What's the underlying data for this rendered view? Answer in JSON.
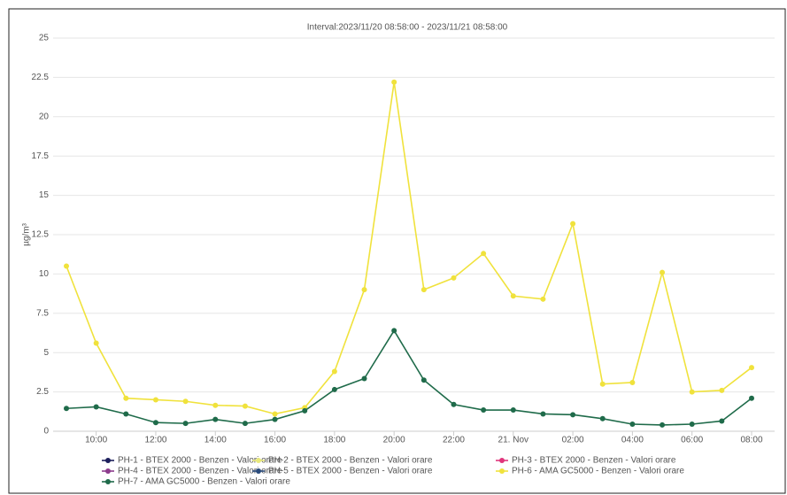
{
  "chart_data": {
    "type": "line",
    "title": "Interval:2023/11/20 08:58:00 - 2023/11/21 08:58:00",
    "y_label": "µg/m³",
    "categories": [
      null,
      "10:00",
      null,
      "12:00",
      null,
      "14:00",
      null,
      "16:00",
      null,
      "18:00",
      null,
      "20:00",
      null,
      "22:00",
      null,
      "21. Nov",
      null,
      "02:00",
      null,
      "04:00",
      null,
      "06:00",
      null,
      "08:00"
    ],
    "ylim": [
      0,
      25
    ],
    "yticks": [
      0,
      2.5,
      5,
      7.5,
      10,
      12.5,
      15,
      17.5,
      20,
      22.5,
      25
    ],
    "grid": true,
    "series": [
      {
        "name": "PH-1 - BTEX 2000 - Benzen - Valori orare",
        "color": "#1c1f5c",
        "values": [
          null,
          null,
          null,
          null,
          null,
          null,
          null,
          null,
          null,
          null,
          null,
          null,
          null,
          null,
          null,
          null,
          null,
          null,
          null,
          null,
          null,
          null,
          null,
          null
        ]
      },
      {
        "name": "PH-2 - BTEX 2000 - Benzen - Valori orare",
        "color": "#e8e87c",
        "values": [
          null,
          null,
          null,
          null,
          null,
          null,
          null,
          null,
          null,
          null,
          null,
          null,
          null,
          null,
          null,
          null,
          null,
          null,
          null,
          null,
          null,
          null,
          null,
          null
        ]
      },
      {
        "name": "PH-3 - BTEX 2000 - Benzen - Valori orare",
        "color": "#e0357c",
        "values": [
          null,
          null,
          null,
          null,
          null,
          null,
          null,
          null,
          null,
          null,
          null,
          null,
          null,
          null,
          null,
          null,
          null,
          null,
          null,
          null,
          null,
          null,
          null,
          null
        ]
      },
      {
        "name": "PH-4 - BTEX 2000 - Benzen - Valori orare",
        "color": "#8c3b8c",
        "values": [
          null,
          null,
          null,
          null,
          null,
          null,
          null,
          null,
          null,
          null,
          null,
          null,
          null,
          null,
          null,
          null,
          null,
          null,
          null,
          null,
          null,
          null,
          null,
          null
        ]
      },
      {
        "name": "PH-5 - BTEX 2000 - Benzen - Valori orare",
        "color": "#2b4c7c",
        "values": [
          null,
          null,
          null,
          null,
          null,
          null,
          null,
          null,
          null,
          null,
          null,
          null,
          null,
          null,
          null,
          null,
          null,
          null,
          null,
          null,
          null,
          null,
          null,
          null
        ]
      },
      {
        "name": "PH-6 - AMA GC5000 - Benzen - Valori orare",
        "color": "#f0e23c",
        "values": [
          10.5,
          5.6,
          2.1,
          2.0,
          1.9,
          1.65,
          1.6,
          1.1,
          1.5,
          3.8,
          9.0,
          22.2,
          9.0,
          9.75,
          11.3,
          8.6,
          8.4,
          13.2,
          3.0,
          3.1,
          10.1,
          2.5,
          2.6,
          4.05
        ]
      },
      {
        "name": "PH-7 - AMA GC5000 - Benzen - Valori orare",
        "color": "#1f6b4a",
        "values": [
          1.45,
          1.55,
          1.1,
          0.55,
          0.5,
          0.75,
          0.5,
          0.75,
          1.3,
          2.65,
          3.35,
          6.4,
          3.25,
          1.7,
          1.35,
          1.35,
          1.1,
          1.05,
          0.8,
          0.45,
          0.4,
          0.45,
          0.65,
          2.1
        ]
      }
    ]
  }
}
